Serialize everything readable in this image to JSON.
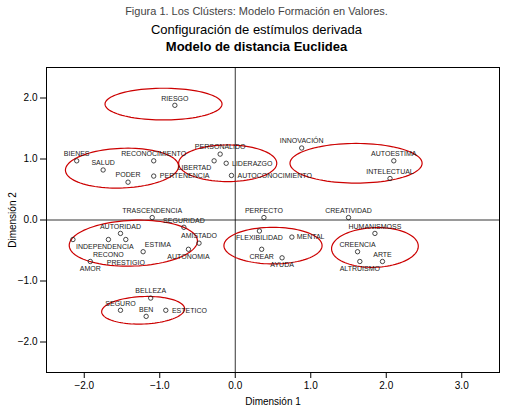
{
  "chart_data": {
    "type": "scatter",
    "caption": "Figura 1. Los Clústers: Modelo Formación en Valores.",
    "title": "Configuración de estímulos derivada",
    "subtitle": "Modelo de distancia Euclidea",
    "xlabel": "Dimensión 1",
    "ylabel": "Dimensión 2",
    "xlim": [
      -2.5,
      3.5
    ],
    "ylim": [
      -2.5,
      2.5
    ],
    "xticks": [
      -2,
      -1,
      0,
      1,
      2,
      3
    ],
    "yticks": [
      -2,
      -1,
      0,
      1,
      2
    ],
    "grid": false,
    "color": "#1a1a1a",
    "points": [
      {
        "label": "RIESGO",
        "x": -0.8,
        "y": 1.88
      },
      {
        "label": "BIENES",
        "x": -2.1,
        "y": 0.97
      },
      {
        "label": "SALUD",
        "x": -1.75,
        "y": 0.82
      },
      {
        "label": "RECONOCIMIENTO",
        "x": -1.08,
        "y": 0.97
      },
      {
        "label": "PODER",
        "x": -1.42,
        "y": 0.62
      },
      {
        "label": "PERTENENCIA",
        "x": -1.08,
        "y": 0.72
      },
      {
        "label": "LIBERTAD",
        "x": -0.28,
        "y": 0.97
      },
      {
        "label": "PERSONALIDO",
        "x": -0.2,
        "y": 1.08
      },
      {
        "label": "LIDERAZGO",
        "x": -0.12,
        "y": 0.93
      },
      {
        "label": "AUTOCONOCIMIENTO",
        "x": -0.05,
        "y": 0.73
      },
      {
        "label": "INNOVACIÓN",
        "x": 0.88,
        "y": 1.18
      },
      {
        "label": "AUTOESTIMA",
        "x": 2.1,
        "y": 0.97
      },
      {
        "label": "INTELECTUAL",
        "x": 2.05,
        "y": 0.68
      },
      {
        "label": "TRASCENDENCIA",
        "x": -1.1,
        "y": 0.04
      },
      {
        "label": "PERFECTO",
        "x": 0.38,
        "y": 0.04
      },
      {
        "label": "CREATIVIDAD",
        "x": 1.5,
        "y": 0.04
      },
      {
        "label": "AUTORIDAD",
        "x": -1.52,
        "y": -0.22
      },
      {
        "label": "INDEPENDENCIA",
        "x": -2.15,
        "y": -0.32
      },
      {
        "label": "RECONO",
        "x": -1.68,
        "y": -0.32
      },
      {
        "label": "PRESTIGIO",
        "x": -1.45,
        "y": -0.32
      },
      {
        "label": "SEGURIDAD",
        "x": -0.68,
        "y": -0.12
      },
      {
        "label": "AMISTADO",
        "x": -0.48,
        "y": -0.38
      },
      {
        "label": "FLEXIBILIDAD",
        "x": 0.32,
        "y": -0.18
      },
      {
        "label": "MENTAL",
        "x": 0.75,
        "y": -0.28
      },
      {
        "label": "HUMANISMOSS",
        "x": 1.85,
        "y": -0.22
      },
      {
        "label": "AUTONOMIA",
        "x": -0.62,
        "y": -0.48
      },
      {
        "label": "ESTIMA",
        "x": -1.22,
        "y": -0.52
      },
      {
        "label": "AMOR",
        "x": -1.92,
        "y": -0.68
      },
      {
        "label": "CREAR",
        "x": 0.35,
        "y": -0.48
      },
      {
        "label": "AYUDA",
        "x": 0.62,
        "y": -0.62
      },
      {
        "label": "CREENCIA",
        "x": 1.62,
        "y": -0.52
      },
      {
        "label": "ALTRUISMO",
        "x": 1.65,
        "y": -0.68
      },
      {
        "label": "ARTE",
        "x": 1.95,
        "y": -0.68
      },
      {
        "label": "BELLEZA",
        "x": -1.12,
        "y": -1.28
      },
      {
        "label": "SEGURO",
        "x": -1.52,
        "y": -1.48
      },
      {
        "label": "ESTETICO",
        "x": -0.92,
        "y": -1.48
      },
      {
        "label": "BEN",
        "x": -1.18,
        "y": -1.58
      }
    ],
    "ellipses": [
      {
        "cx": -0.95,
        "cy": 1.9,
        "width": 1.55,
        "height": 0.52,
        "angle": 0,
        "color": "#cc0000"
      },
      {
        "cx": -1.5,
        "cy": 0.85,
        "width": 1.5,
        "height": 0.65,
        "angle": 3,
        "color": "#cc0000"
      },
      {
        "cx": -0.1,
        "cy": 0.93,
        "width": 1.3,
        "height": 0.6,
        "angle": 0,
        "color": "#cc0000"
      },
      {
        "cx": 1.6,
        "cy": 0.93,
        "width": 1.75,
        "height": 0.65,
        "angle": 0,
        "color": "#cc0000"
      },
      {
        "cx": -1.35,
        "cy": -0.38,
        "width": 1.7,
        "height": 0.75,
        "angle": 3,
        "color": "#cc0000"
      },
      {
        "cx": 0.5,
        "cy": -0.42,
        "width": 1.3,
        "height": 0.6,
        "angle": 0,
        "color": "#cc0000"
      },
      {
        "cx": 1.85,
        "cy": -0.45,
        "width": 1.15,
        "height": 0.65,
        "angle": 3,
        "color": "#cc0000"
      },
      {
        "cx": -1.22,
        "cy": -1.48,
        "width": 1.1,
        "height": 0.45,
        "angle": 3,
        "color": "#cc0000"
      }
    ]
  }
}
